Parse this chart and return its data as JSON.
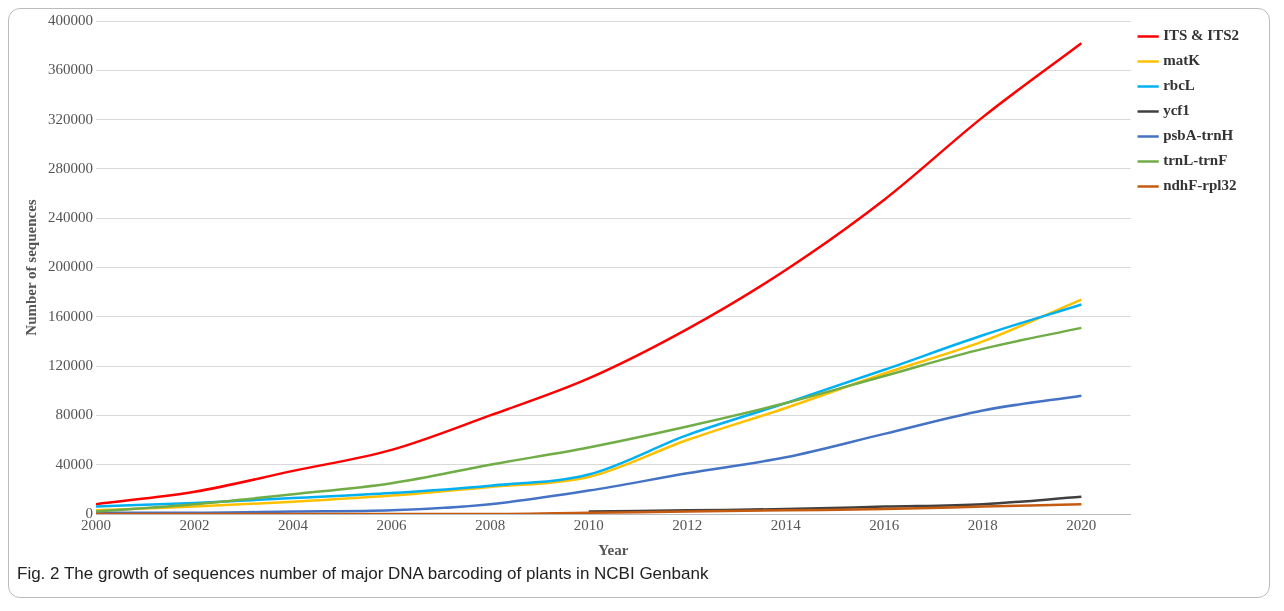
{
  "chart_data": {
    "type": "line",
    "xlabel": "Year",
    "ylabel": "Number of sequences",
    "x": [
      2000,
      2002,
      2004,
      2006,
      2008,
      2010,
      2012,
      2014,
      2016,
      2018,
      2020
    ],
    "xlim": [
      2000,
      2021
    ],
    "xticks": [
      2000,
      2002,
      2004,
      2006,
      2008,
      2010,
      2012,
      2014,
      2016,
      2018,
      2020
    ],
    "ylim": [
      0,
      400000
    ],
    "yticks": [
      0,
      40000,
      80000,
      120000,
      160000,
      200000,
      240000,
      280000,
      320000,
      360000,
      400000
    ],
    "grid": "y",
    "legend": "right",
    "marker": "none",
    "series": [
      {
        "name": "ITS & ITS2",
        "color": "#ff0000",
        "values": [
          8000,
          18000,
          35000,
          52000,
          80000,
          110000,
          150000,
          198000,
          255000,
          322000,
          382000
        ]
      },
      {
        "name": "matK",
        "color": "#ffc000",
        "values": [
          3000,
          6000,
          10000,
          15000,
          22000,
          30000,
          60000,
          86000,
          114000,
          140000,
          174000
        ]
      },
      {
        "name": "rbcL",
        "color": "#00b0f0",
        "values": [
          6000,
          9000,
          13000,
          17000,
          23000,
          32000,
          64000,
          90000,
          117000,
          145000,
          170000
        ]
      },
      {
        "name": "ycf1",
        "color": "#404040",
        "values": [
          null,
          null,
          null,
          null,
          null,
          2000,
          3000,
          4000,
          6000,
          8000,
          14000
        ]
      },
      {
        "name": "psbA-trnH",
        "color": "#4472c4",
        "values": [
          1000,
          1000,
          2000,
          3000,
          8000,
          19000,
          33000,
          46000,
          65000,
          84000,
          96000
        ]
      },
      {
        "name": "trnL-trnF",
        "color": "#70ad47",
        "values": [
          2000,
          8000,
          16000,
          25000,
          40000,
          54000,
          71000,
          90000,
          112000,
          134000,
          151000
        ]
      },
      {
        "name": "ndhF-rpl32",
        "color": "#c55a11",
        "values": [
          0,
          0,
          0,
          0,
          0,
          1000,
          2000,
          3000,
          4000,
          6000,
          8000
        ]
      }
    ],
    "annotations": [
      "Fig. 2  The growth of sequences number of major DNA barcoding of plants in NCBI Genbank"
    ]
  }
}
